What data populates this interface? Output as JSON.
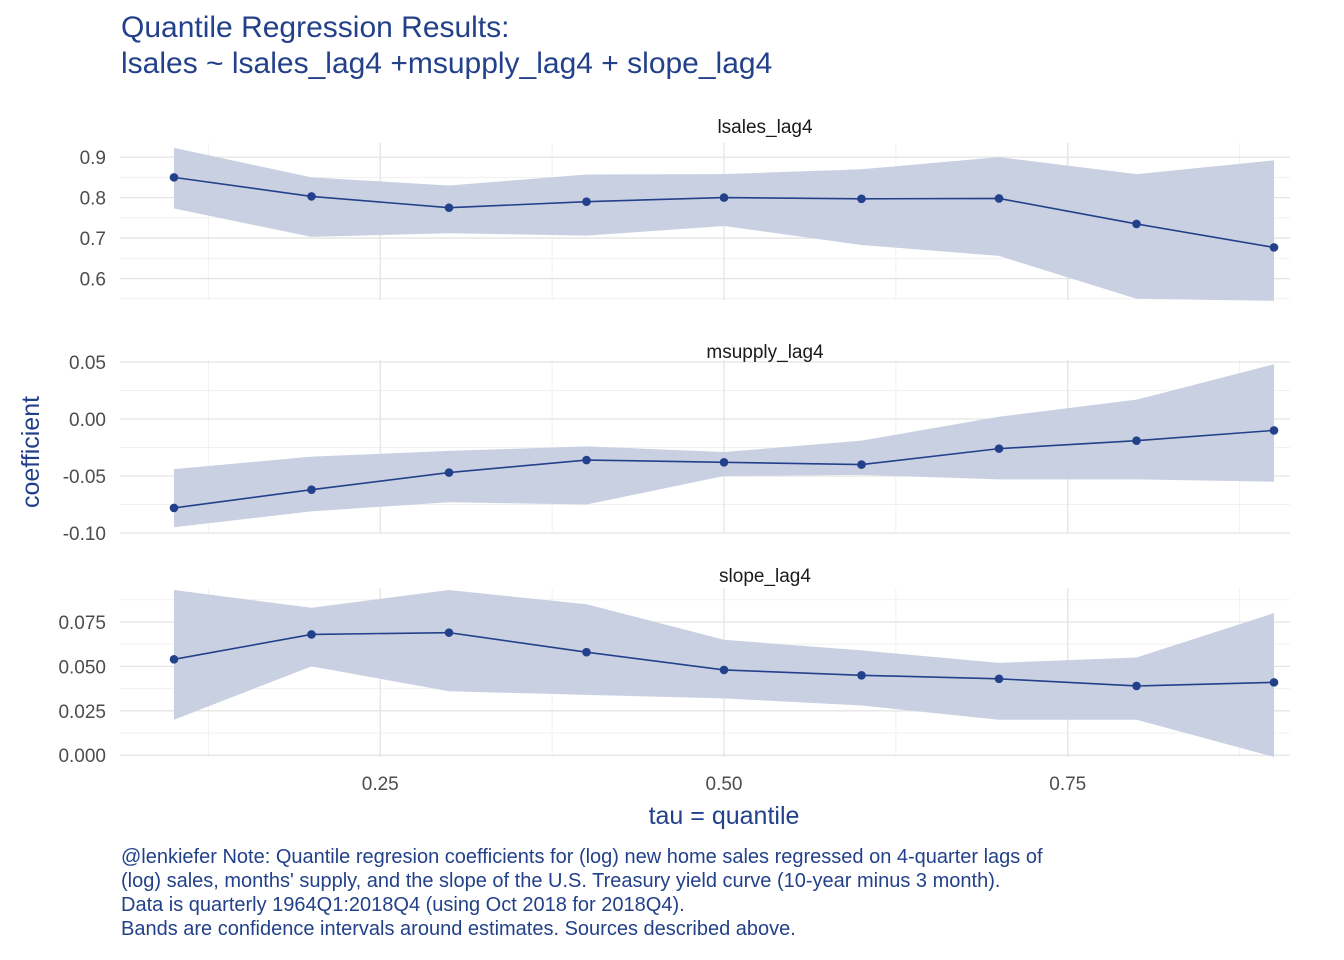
{
  "title_lines": [
    "Quantile Regression Results:",
    "lsales ~ lsales_lag4 +msupply_lag4 + slope_lag4"
  ],
  "caption_lines": [
    "@lenkiefer Note: Quantile regresion coefficients for (log) new home sales regressed on 4-quarter lags of",
    "(log) sales, months' supply, and the slope of the U.S. Treasury yield curve (10-year minus 3 month).",
    "Data is quarterly 1964Q1:2018Q4 (using Oct 2018 for 2018Q4).",
    "Bands are confidence intervals around estimates. Sources described above."
  ],
  "colors": {
    "title": "#23418a",
    "line": "#23418a",
    "band": "#c6cde0",
    "grid_major": "#e4e4e4",
    "grid_minor": "#f1f1f1",
    "tick_text": "#4d4d4d",
    "strip_text": "#1a1a1a"
  },
  "chart_data": {
    "type": "line",
    "xlabel": "tau = quantile",
    "ylabel": "coefficient",
    "xlim": [
      0.1,
      0.9
    ],
    "x_ticks": [
      0.25,
      0.5,
      0.75
    ],
    "x_tick_labels": [
      "0.25",
      "0.50",
      "0.75"
    ],
    "grid": true,
    "facets": [
      {
        "name": "lsales_lag4",
        "ylim": [
          0.547,
          0.93
        ],
        "y_ticks": [
          0.6,
          0.7,
          0.8,
          0.9
        ],
        "y_tick_labels": [
          "0.6",
          "0.7",
          "0.8",
          "0.9"
        ],
        "x": [
          0.1,
          0.2,
          0.3,
          0.4,
          0.5,
          0.6,
          0.7,
          0.8,
          0.9
        ],
        "values": [
          0.85,
          0.803,
          0.775,
          0.79,
          0.8,
          0.797,
          0.798,
          0.735,
          0.677
        ],
        "lower": [
          0.773,
          0.703,
          0.712,
          0.706,
          0.73,
          0.683,
          0.656,
          0.55,
          0.545
        ],
        "upper": [
          0.923,
          0.85,
          0.83,
          0.857,
          0.858,
          0.87,
          0.9,
          0.858,
          0.892
        ]
      },
      {
        "name": "msupply_lag4",
        "ylim": [
          -0.1,
          0.05
        ],
        "y_ticks": [
          -0.1,
          -0.05,
          0.0,
          0.05
        ],
        "y_tick_labels": [
          "-0.10",
          "-0.05",
          "0.00",
          "0.05"
        ],
        "x": [
          0.1,
          0.2,
          0.3,
          0.4,
          0.5,
          0.6,
          0.7,
          0.8,
          0.9
        ],
        "values": [
          -0.078,
          -0.062,
          -0.047,
          -0.036,
          -0.038,
          -0.04,
          -0.026,
          -0.019,
          -0.01
        ],
        "lower": [
          -0.095,
          -0.081,
          -0.073,
          -0.075,
          -0.05,
          -0.049,
          -0.053,
          -0.053,
          -0.055
        ],
        "upper": [
          -0.044,
          -0.033,
          -0.028,
          -0.024,
          -0.029,
          -0.019,
          0.002,
          0.017,
          0.048
        ]
      },
      {
        "name": "slope_lag4",
        "ylim": [
          -0.001,
          0.093
        ],
        "y_ticks": [
          0.0,
          0.025,
          0.05,
          0.075
        ],
        "y_tick_labels": [
          "0.000",
          "0.025",
          "0.050",
          "0.075"
        ],
        "x": [
          0.1,
          0.2,
          0.3,
          0.4,
          0.5,
          0.6,
          0.7,
          0.8,
          0.9
        ],
        "values": [
          0.054,
          0.068,
          0.069,
          0.058,
          0.048,
          0.045,
          0.043,
          0.039,
          0.041
        ],
        "lower": [
          0.02,
          0.05,
          0.036,
          0.034,
          0.032,
          0.028,
          0.02,
          0.02,
          -0.001
        ],
        "upper": [
          0.093,
          0.083,
          0.093,
          0.085,
          0.065,
          0.059,
          0.052,
          0.055,
          0.08
        ]
      }
    ]
  }
}
